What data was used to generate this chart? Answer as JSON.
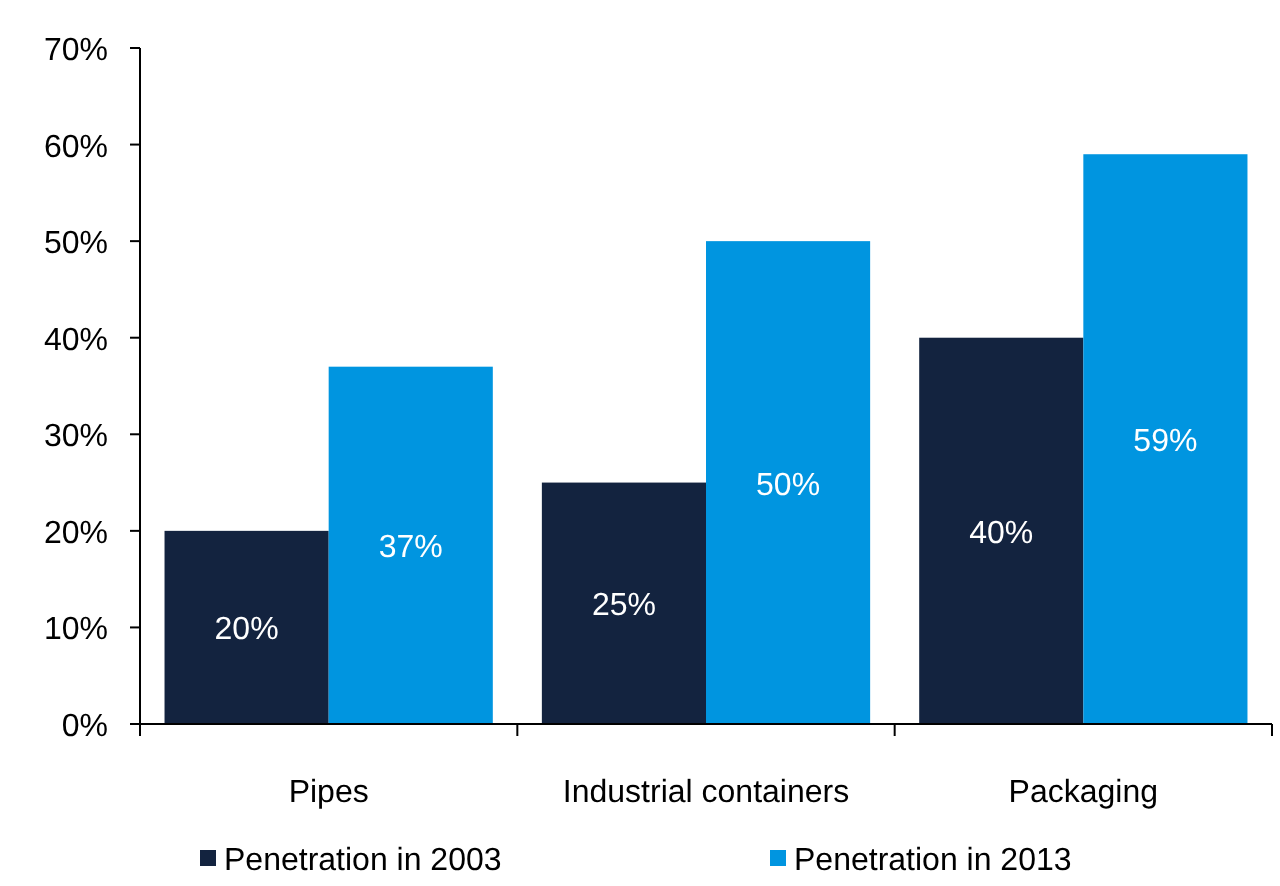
{
  "chart_data": {
    "type": "bar",
    "categories": [
      "Pipes",
      "Industrial containers",
      "Packaging"
    ],
    "series": [
      {
        "name": "Penetration in 2003",
        "color": "#13233f",
        "values": [
          20,
          25,
          40
        ],
        "value_labels": [
          "20%",
          "25%",
          "40%"
        ]
      },
      {
        "name": "Penetration in 2013",
        "color": "#0095e0",
        "values": [
          37,
          50,
          59
        ],
        "value_labels": [
          "37%",
          "50%",
          "59%"
        ]
      }
    ],
    "ylim": [
      0,
      70
    ],
    "yticks": [
      {
        "value": 0,
        "label": "0%"
      },
      {
        "value": 10,
        "label": "10%"
      },
      {
        "value": 20,
        "label": "20%"
      },
      {
        "value": 30,
        "label": "30%"
      },
      {
        "value": 40,
        "label": "40%"
      },
      {
        "value": 50,
        "label": "50%"
      },
      {
        "value": 60,
        "label": "60%"
      },
      {
        "value": 70,
        "label": "70%"
      }
    ],
    "grid": false,
    "legend": "bottom"
  }
}
